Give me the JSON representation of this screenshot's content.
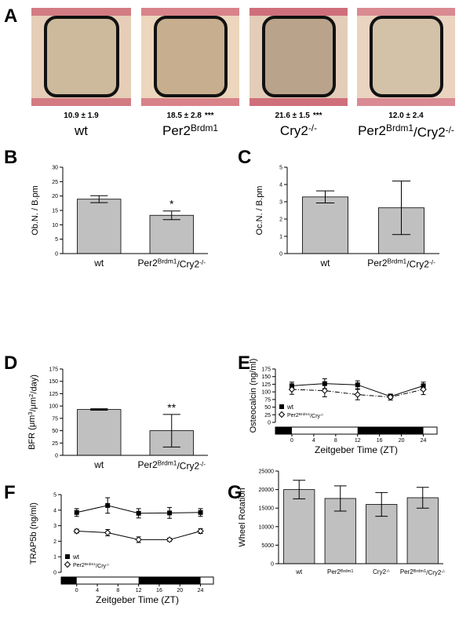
{
  "panel_a": {
    "panel_letter": "A",
    "samples": [
      {
        "stat": "10.9 ± 1.9",
        "significance": null,
        "label": [
          "wt"
        ]
      },
      {
        "stat": "18.5 ± 2.8",
        "significance": "***",
        "label": [
          "Per2",
          {
            "sup": "Brdm1"
          }
        ]
      },
      {
        "stat": "21.6 ± 1.5",
        "significance": "***",
        "label": [
          "Cry2",
          {
            "sup": "-/-"
          }
        ]
      },
      {
        "stat": "12.0 ± 2.4",
        "significance": null,
        "label": [
          "Per2",
          {
            "sup": "Brdm1"
          },
          "/Cry2",
          {
            "sup": "-/-"
          }
        ]
      }
    ]
  },
  "chart_data": [
    {
      "type": "bar",
      "panel_letter": "B",
      "ylabel": [
        "Ob.N. / B.pm"
      ],
      "categories": [
        [
          "wt"
        ],
        [
          "Per2",
          {
            "sup": "Brdm1"
          },
          "/Cry2",
          {
            "sup": "-/-"
          }
        ]
      ],
      "values": [
        18.9,
        13.3
      ],
      "errors": [
        1.2,
        1.5
      ],
      "significance": [
        null,
        "*"
      ],
      "color": "#c0c0c0",
      "ylim": [
        0,
        30
      ],
      "yticks": [
        0,
        5,
        10,
        15,
        20,
        25,
        30
      ]
    },
    {
      "type": "bar",
      "panel_letter": "C",
      "ylabel": [
        "Oc.N. / B.pm"
      ],
      "categories": [
        [
          "wt"
        ],
        [
          "Per2",
          {
            "sup": "Brdm1"
          },
          "/Cry2",
          {
            "sup": "-/-"
          }
        ]
      ],
      "values": [
        3.28,
        2.65
      ],
      "errors": [
        0.35,
        1.55
      ],
      "color": "#c0c0c0",
      "ylim": [
        0,
        5
      ],
      "yticks": [
        0,
        1,
        2,
        3,
        4,
        5
      ]
    },
    {
      "type": "bar",
      "panel_letter": "D",
      "ylabel": [
        "BFR (μm",
        {
          "sup": "3"
        },
        "/μm",
        {
          "sup": "2"
        },
        "/day)"
      ],
      "categories": [
        [
          "wt"
        ],
        [
          "Per2",
          {
            "sup": "Brdm1"
          },
          "/Cry2",
          {
            "sup": "-/-"
          }
        ]
      ],
      "values": [
        93,
        50
      ],
      "errors": [
        1.5,
        33
      ],
      "significance": [
        null,
        "**"
      ],
      "color": "#c0c0c0",
      "ylim": [
        0,
        175
      ],
      "yticks": [
        0,
        25,
        50,
        75,
        100,
        125,
        150,
        175
      ]
    },
    {
      "type": "line",
      "panel_letter": "E",
      "ylabel": [
        "Osteocalcin (ng/ml)"
      ],
      "xlabel": "Zeitgeber Time (ZT)",
      "x": [
        0,
        6,
        12,
        18,
        24
      ],
      "xlim": [
        -3,
        26.5
      ],
      "xticks": [
        0,
        4,
        8,
        12,
        16,
        20,
        24
      ],
      "dark_periods": [
        [
          -3,
          0
        ],
        [
          12,
          24
        ]
      ],
      "ylim": [
        0,
        175
      ],
      "yticks": [
        0,
        25,
        50,
        75,
        100,
        125,
        150,
        175
      ],
      "legend": "lower left",
      "series": [
        {
          "name": [
            "wt"
          ],
          "color": "#000000",
          "marker": "square",
          "dash": false,
          "values": [
            120,
            127,
            123,
            85,
            120
          ],
          "errors": [
            12,
            16,
            13,
            7,
            12
          ]
        },
        {
          "name": [
            "Per2",
            {
              "sup": "Brdm1"
            },
            "/Cry",
            {
              "sup": "-/-"
            }
          ],
          "color": "#000000",
          "marker": "diamond",
          "dash": true,
          "values": [
            108,
            104,
            91,
            83,
            108
          ],
          "errors": [
            16,
            20,
            17,
            10,
            17
          ]
        }
      ]
    },
    {
      "type": "line",
      "panel_letter": "F",
      "ylabel": [
        "TRAP5b (ng/ml)"
      ],
      "xlabel": "Zeitgeber Time (ZT)",
      "x": [
        0,
        6,
        12,
        18,
        24
      ],
      "xlim": [
        -3,
        26.5
      ],
      "xticks": [
        0,
        4,
        8,
        12,
        16,
        20,
        24
      ],
      "dark_periods": [
        [
          -3,
          0
        ],
        [
          12,
          24
        ]
      ],
      "ylim": [
        0,
        5
      ],
      "yticks": [
        0,
        1,
        2,
        3,
        4,
        5
      ],
      "legend": "lower left",
      "series": [
        {
          "name": [
            "wt"
          ],
          "color": "#000000",
          "marker": "square",
          "dash": false,
          "values": [
            3.85,
            4.3,
            3.8,
            3.82,
            3.85
          ],
          "errors": [
            0.25,
            0.5,
            0.3,
            0.35,
            0.25
          ]
        },
        {
          "name": [
            "Per2",
            {
              "sup": "Brdm1"
            },
            "/Cry",
            {
              "sup": "-/-"
            }
          ],
          "color": "#000000",
          "marker": "diamond",
          "dash": false,
          "values": [
            2.65,
            2.55,
            2.1,
            2.1,
            2.65
          ],
          "errors": [
            0.12,
            0.2,
            0.18,
            0.1,
            0.15
          ]
        }
      ]
    },
    {
      "type": "bar",
      "panel_letter": "G",
      "ylabel": [
        "Wheel Rotation"
      ],
      "categories": [
        [
          "wt"
        ],
        [
          "Per2",
          {
            "sup": "Brdm1"
          }
        ],
        [
          "Cry2",
          {
            "sup": "-/-"
          }
        ],
        [
          "Per2",
          {
            "sup": "Brdm1"
          },
          "/Cry2",
          {
            "sup": "-/-"
          }
        ]
      ],
      "values": [
        20000,
        17600,
        16000,
        17800
      ],
      "errors": [
        2500,
        3400,
        3200,
        2800
      ],
      "color": "#c0c0c0",
      "ylim": [
        0,
        25000
      ],
      "yticks": [
        0,
        5000,
        10000,
        15000,
        20000,
        25000
      ]
    }
  ]
}
